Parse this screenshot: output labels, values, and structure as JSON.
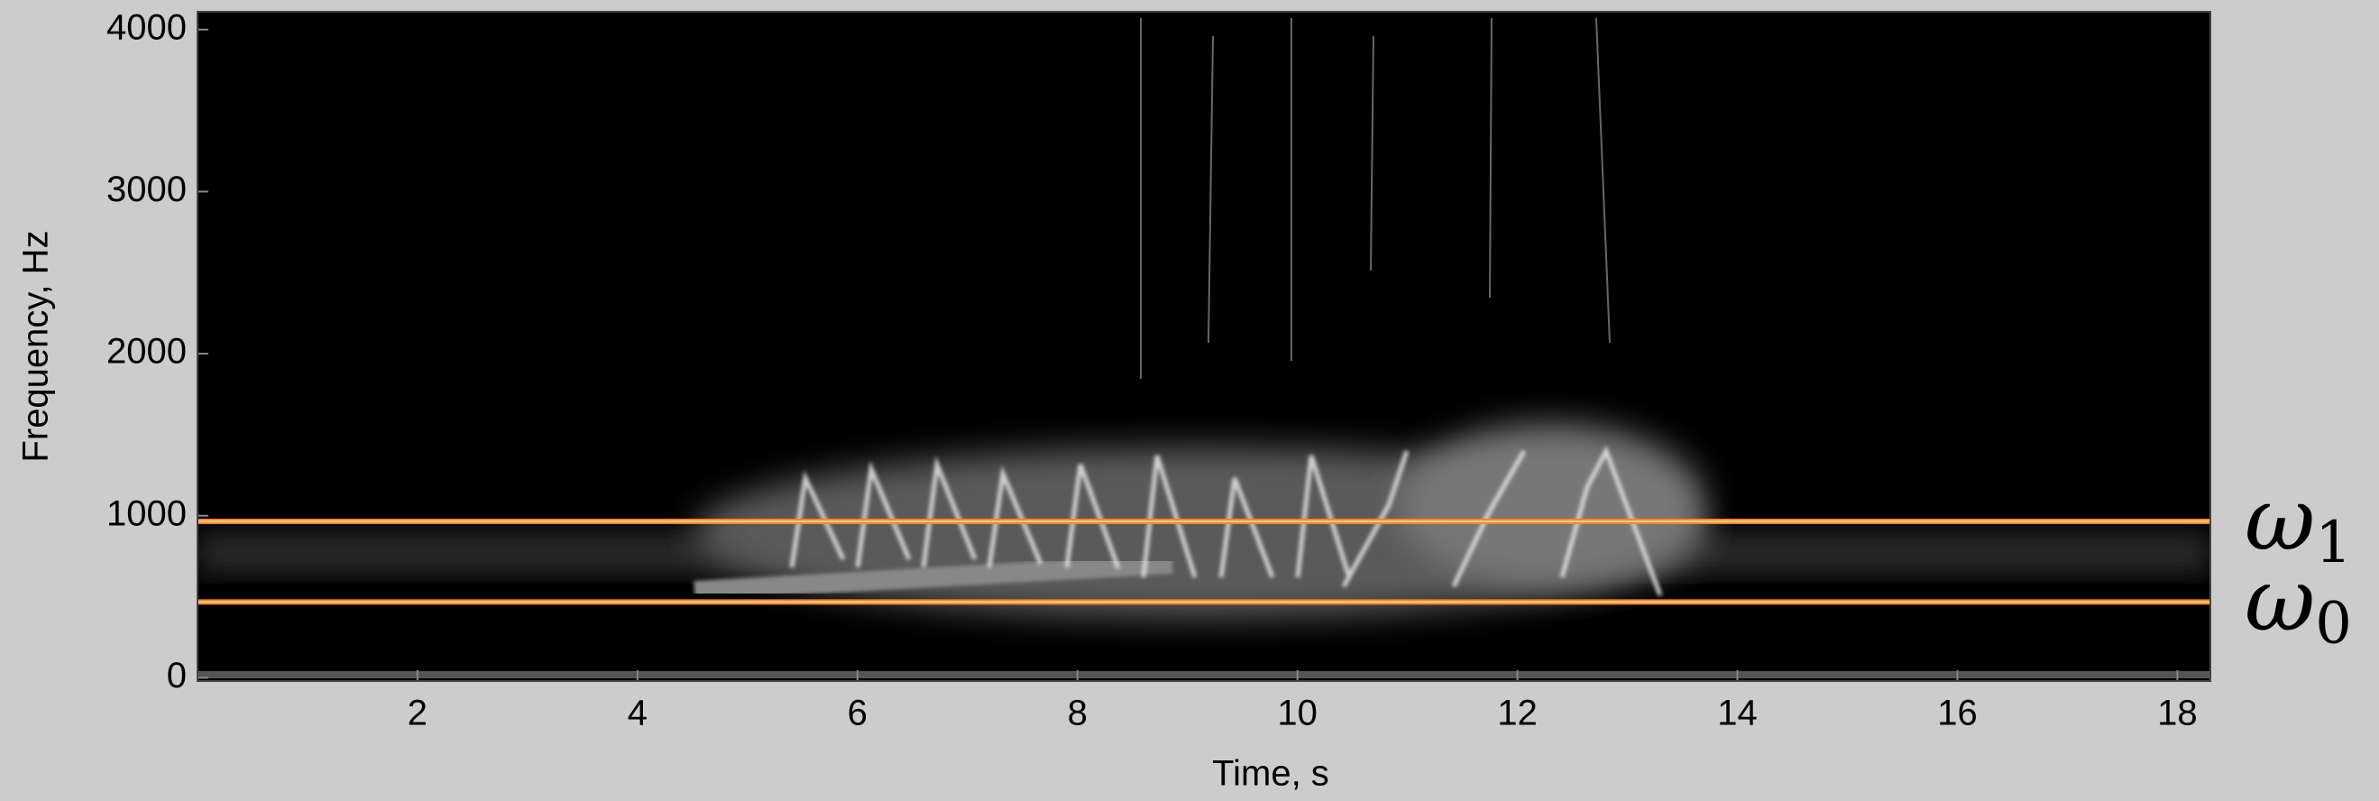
{
  "chart_data": {
    "type": "spectrogram",
    "x_label": "Time, s",
    "y_label": "Frequency, Hz",
    "xlim": [
      0,
      18.3
    ],
    "ylim": [
      -20,
      4110
    ],
    "xticks": [
      2,
      4,
      6,
      8,
      10,
      12,
      14,
      16,
      18
    ],
    "yticks": [
      0,
      1000,
      2000,
      3000,
      4000
    ],
    "lines": [
      {
        "symbol": "ω",
        "subscript": "1",
        "value": 965,
        "color": "#f08a24"
      },
      {
        "symbol": "ω",
        "subscript": "0",
        "value": 468,
        "color": "#f08a24"
      }
    ]
  }
}
